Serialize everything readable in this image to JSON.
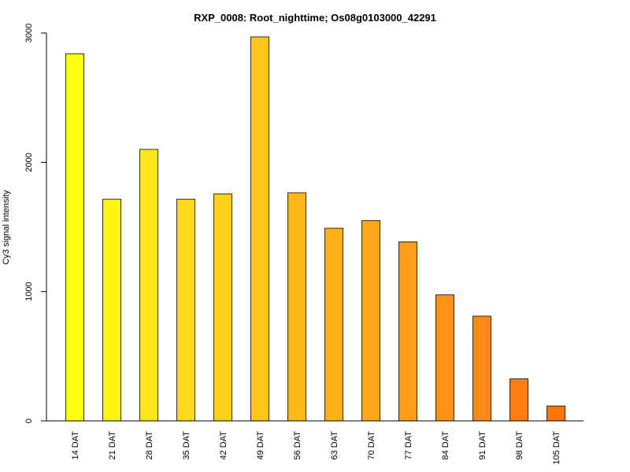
{
  "chart_data": {
    "type": "bar",
    "title": "RXP_0008: Root_nighttime; Os08g0103000_42291",
    "xlabel": "",
    "ylabel": "Cy3 signal intensity",
    "ylim": [
      0,
      3000
    ],
    "yticks": [
      0,
      1000,
      2000,
      3000
    ],
    "grid": false,
    "categories": [
      "14 DAT",
      "21 DAT",
      "28 DAT",
      "35 DAT",
      "42 DAT",
      "49 DAT",
      "56 DAT",
      "63 DAT",
      "70 DAT",
      "77 DAT",
      "84 DAT",
      "91 DAT",
      "98 DAT",
      "105 DAT"
    ],
    "values": [
      2840,
      1715,
      2100,
      1715,
      1755,
      2970,
      1765,
      1490,
      1550,
      1385,
      975,
      810,
      325,
      115
    ],
    "colors": [
      "#FFFF0F",
      "#FFF314",
      "#FFE619",
      "#FFDA19",
      "#FFCF19",
      "#FFC519",
      "#FFBA19",
      "#FFB019",
      "#FFA619",
      "#FF9C19",
      "#FF931A",
      "#FF8916",
      "#FF7E0F",
      "#FF7508"
    ]
  }
}
